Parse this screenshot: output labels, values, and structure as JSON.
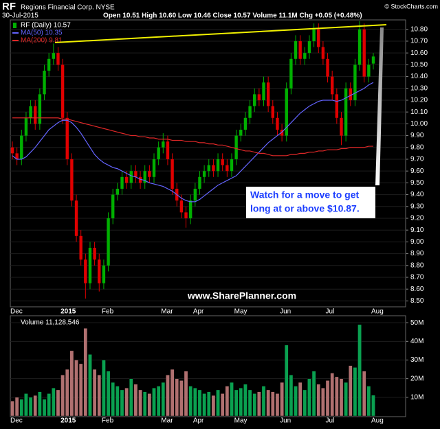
{
  "header": {
    "symbol": "RF",
    "company": "Regions Financial Corp. NYSE",
    "date": "30-Jul-2015",
    "quote": "Open 10.51  High 10.60  Low 10.46  Close 10.57  Volume 11.1M  Chg +0.05 (+0.48%)",
    "copyright": "© StockCharts.com"
  },
  "chart_data": [
    {
      "type": "candlestick",
      "up_color": "#00b000",
      "down_color": "#e00000",
      "grid": true,
      "annotation": [
        "Watch for a move to get",
        "long at or above $10.87."
      ],
      "watermark": "www.SharePlanner.com",
      "categories": [
        "Dec",
        null,
        null,
        null,
        null,
        null,
        null,
        null,
        null,
        null,
        null,
        "2015",
        null,
        null,
        null,
        null,
        null,
        null,
        null,
        null,
        "Feb",
        null,
        null,
        null,
        null,
        null,
        null,
        null,
        null,
        null,
        null,
        null,
        null,
        "Mar",
        null,
        null,
        null,
        null,
        null,
        null,
        "Apr",
        null,
        null,
        null,
        null,
        null,
        null,
        null,
        null,
        "May",
        null,
        null,
        null,
        null,
        null,
        null,
        null,
        null,
        null,
        "Jun",
        null,
        null,
        null,
        null,
        null,
        null,
        null,
        null,
        null,
        "Jul",
        null,
        null,
        null,
        null,
        null,
        null,
        null,
        null,
        null,
        "Aug"
      ],
      "series": [
        {
          "name": "RF (Daily) 10.57",
          "open": [
            9.8,
            9.75,
            9.7,
            9.9,
            10.05,
            10.15,
            10.0,
            10.25,
            10.45,
            10.55,
            10.6,
            10.5,
            10.05,
            9.7,
            9.35,
            9.05,
            8.85,
            8.65,
            8.95,
            8.85,
            8.65,
            8.8,
            9.2,
            9.4,
            9.45,
            9.55,
            9.5,
            9.6,
            9.55,
            9.5,
            9.6,
            9.55,
            9.7,
            9.8,
            9.85,
            9.7,
            9.45,
            9.35,
            9.25,
            9.2,
            9.35,
            9.45,
            9.55,
            9.6,
            9.65,
            9.6,
            9.7,
            9.65,
            9.6,
            9.7,
            9.9,
            9.95,
            10.05,
            10.15,
            10.25,
            10.2,
            10.35,
            10.15,
            10.05,
            9.95,
            9.9,
            10.3,
            10.55,
            10.7,
            10.55,
            10.6,
            10.7,
            10.8,
            10.65,
            10.55,
            10.4,
            10.25,
            10.05,
            9.9,
            10.3,
            10.2,
            10.5,
            10.8,
            10.4,
            10.51
          ],
          "high": [
            9.85,
            9.8,
            9.95,
            10.1,
            10.2,
            10.2,
            10.3,
            10.5,
            10.6,
            10.68,
            10.65,
            10.55,
            10.1,
            9.75,
            9.4,
            9.1,
            8.9,
            9.0,
            9.0,
            8.9,
            8.85,
            9.25,
            9.45,
            9.5,
            9.6,
            9.6,
            9.65,
            9.65,
            9.6,
            9.65,
            9.65,
            9.75,
            9.85,
            9.92,
            9.9,
            9.75,
            9.5,
            9.4,
            9.3,
            9.4,
            9.5,
            9.6,
            9.65,
            9.7,
            9.7,
            9.75,
            9.75,
            9.7,
            9.75,
            9.95,
            10.0,
            10.1,
            10.2,
            10.3,
            10.3,
            10.4,
            10.4,
            10.2,
            10.1,
            10.0,
            10.35,
            10.6,
            10.75,
            10.75,
            10.65,
            10.75,
            10.85,
            10.85,
            10.7,
            10.6,
            10.45,
            10.3,
            10.1,
            10.35,
            10.35,
            10.55,
            10.87,
            10.85,
            10.55,
            10.6
          ],
          "low": [
            9.7,
            9.65,
            9.65,
            9.85,
            10.0,
            9.95,
            9.95,
            10.2,
            10.4,
            10.5,
            10.45,
            10.0,
            9.65,
            9.3,
            9.0,
            8.8,
            8.52,
            8.6,
            8.8,
            8.58,
            8.6,
            8.75,
            9.15,
            9.35,
            9.4,
            9.45,
            9.45,
            9.5,
            9.45,
            9.45,
            9.5,
            9.5,
            9.65,
            9.75,
            9.65,
            9.4,
            9.3,
            9.2,
            9.12,
            9.15,
            9.3,
            9.4,
            9.5,
            9.55,
            9.55,
            9.55,
            9.6,
            9.55,
            9.55,
            9.65,
            9.85,
            9.9,
            10.0,
            10.1,
            10.15,
            10.15,
            10.1,
            10.0,
            9.9,
            9.85,
            9.85,
            10.25,
            10.5,
            10.5,
            10.5,
            10.55,
            10.65,
            10.6,
            10.5,
            10.35,
            10.2,
            10.0,
            9.82,
            9.85,
            10.15,
            10.15,
            10.45,
            10.35,
            10.35,
            10.46
          ],
          "close": [
            9.75,
            9.7,
            9.9,
            10.05,
            10.15,
            10.0,
            10.25,
            10.45,
            10.55,
            10.6,
            10.5,
            10.05,
            9.7,
            9.35,
            9.05,
            8.85,
            8.65,
            8.95,
            8.85,
            8.65,
            8.8,
            9.2,
            9.4,
            9.45,
            9.55,
            9.5,
            9.6,
            9.55,
            9.5,
            9.6,
            9.55,
            9.7,
            9.8,
            9.85,
            9.7,
            9.45,
            9.35,
            9.25,
            9.2,
            9.35,
            9.45,
            9.55,
            9.6,
            9.65,
            9.6,
            9.7,
            9.65,
            9.6,
            9.7,
            9.9,
            9.95,
            10.05,
            10.15,
            10.25,
            10.2,
            10.35,
            10.15,
            10.05,
            9.95,
            9.9,
            10.3,
            10.55,
            10.7,
            10.55,
            10.6,
            10.7,
            10.8,
            10.65,
            10.55,
            10.4,
            10.25,
            10.05,
            9.9,
            10.3,
            10.2,
            10.5,
            10.8,
            10.4,
            10.5,
            10.57
          ]
        },
        {
          "name": "MA(50) 10.35",
          "color": "#6464ff",
          "values": [
            9.73,
            9.7,
            9.7,
            9.72,
            9.76,
            9.8,
            9.85,
            9.9,
            9.95,
            9.98,
            10.01,
            10.03,
            10.03,
            10.01,
            9.97,
            9.92,
            9.86,
            9.8,
            9.74,
            9.7,
            9.67,
            9.65,
            9.63,
            9.62,
            9.6,
            9.58,
            9.56,
            9.55,
            9.53,
            9.52,
            9.5,
            9.49,
            9.48,
            9.47,
            9.45,
            9.43,
            9.4,
            9.37,
            9.35,
            9.34,
            9.34,
            9.36,
            9.39,
            9.42,
            9.45,
            9.48,
            9.5,
            9.52,
            9.54,
            9.56,
            9.6,
            9.64,
            9.68,
            9.72,
            9.76,
            9.8,
            9.84,
            9.87,
            9.9,
            9.93,
            9.97,
            10.01,
            10.05,
            10.09,
            10.12,
            10.15,
            10.17,
            10.19,
            10.2,
            10.2,
            10.2,
            10.19,
            10.2,
            10.22,
            10.24,
            10.26,
            10.28,
            10.3,
            10.33,
            10.35
          ]
        },
        {
          "name": "MA(200) 9.81",
          "color": "#e02828",
          "values": [
            10.05,
            10.05,
            10.05,
            10.05,
            10.05,
            10.05,
            10.05,
            10.05,
            10.05,
            10.05,
            10.05,
            10.04,
            10.04,
            10.03,
            10.02,
            10.01,
            10.0,
            9.99,
            9.98,
            9.97,
            9.96,
            9.95,
            9.94,
            9.93,
            9.92,
            9.91,
            9.9,
            9.9,
            9.89,
            9.89,
            9.88,
            9.88,
            9.87,
            9.87,
            9.87,
            9.86,
            9.86,
            9.86,
            9.85,
            9.85,
            9.85,
            9.84,
            9.84,
            9.83,
            9.83,
            9.82,
            9.82,
            9.81,
            9.8,
            9.79,
            9.78,
            9.77,
            9.77,
            9.76,
            9.75,
            9.75,
            9.74,
            9.73,
            9.73,
            9.73,
            9.73,
            9.74,
            9.74,
            9.75,
            9.75,
            9.76,
            9.76,
            9.77,
            9.77,
            9.78,
            9.78,
            9.78,
            9.79,
            9.79,
            9.8,
            9.8,
            9.8,
            9.8,
            9.81,
            9.81
          ]
        }
      ],
      "ylim": [
        8.45,
        10.88
      ],
      "yticks": [
        {
          "value": 8.5,
          "label": "8.50"
        },
        {
          "value": 8.6,
          "label": "8.60"
        },
        {
          "value": 8.7,
          "label": "8.70"
        },
        {
          "value": 8.8,
          "label": "8.80"
        },
        {
          "value": 8.9,
          "label": "8.90"
        },
        {
          "value": 9.0,
          "label": "9.00"
        },
        {
          "value": 9.1,
          "label": "9.10"
        },
        {
          "value": 9.2,
          "label": "9.20"
        },
        {
          "value": 9.3,
          "label": "9.30"
        },
        {
          "value": 9.4,
          "label": "9.40"
        },
        {
          "value": 9.5,
          "label": "9.50"
        },
        {
          "value": 9.6,
          "label": "9.60"
        },
        {
          "value": 9.7,
          "label": "9.70"
        },
        {
          "value": 9.8,
          "label": "9.80"
        },
        {
          "value": 9.9,
          "label": "9.90"
        },
        {
          "value": 10.0,
          "label": "10.00"
        },
        {
          "value": 10.1,
          "label": "10.10"
        },
        {
          "value": 10.2,
          "label": "10.20"
        },
        {
          "value": 10.3,
          "label": "10.30"
        },
        {
          "value": 10.4,
          "label": "10.40"
        },
        {
          "value": 10.5,
          "label": "10.50"
        },
        {
          "value": 10.6,
          "label": "10.60"
        },
        {
          "value": 10.7,
          "label": "10.70"
        },
        {
          "value": 10.8,
          "label": "10.80"
        }
      ]
    },
    {
      "type": "bar",
      "title": "Volume 11,128,546",
      "grid": true,
      "categories": [
        "Dec",
        null,
        null,
        null,
        null,
        null,
        null,
        null,
        null,
        null,
        null,
        "2015",
        null,
        null,
        null,
        null,
        null,
        null,
        null,
        null,
        "Feb",
        null,
        null,
        null,
        null,
        null,
        null,
        null,
        null,
        null,
        null,
        null,
        null,
        "Mar",
        null,
        null,
        null,
        null,
        null,
        null,
        "Apr",
        null,
        null,
        null,
        null,
        null,
        null,
        null,
        null,
        "May",
        null,
        null,
        null,
        null,
        null,
        null,
        null,
        null,
        null,
        "Jun",
        null,
        null,
        null,
        null,
        null,
        null,
        null,
        null,
        null,
        "Jul",
        null,
        null,
        null,
        null,
        null,
        null,
        null,
        null,
        null,
        "Aug"
      ],
      "values": [
        8000000,
        10000000,
        9000000,
        12000000,
        10000000,
        11000000,
        13000000,
        9000000,
        12000000,
        15000000,
        14000000,
        22000000,
        25000000,
        35000000,
        30000000,
        28000000,
        47000000,
        33000000,
        25000000,
        22000000,
        30000000,
        24000000,
        18000000,
        16000000,
        14000000,
        15000000,
        20000000,
        17000000,
        14000000,
        13000000,
        12000000,
        15000000,
        16000000,
        18000000,
        22000000,
        25000000,
        20000000,
        19000000,
        24000000,
        16000000,
        15000000,
        14000000,
        12000000,
        13000000,
        11000000,
        14000000,
        12000000,
        16000000,
        18000000,
        14000000,
        15000000,
        17000000,
        14000000,
        12000000,
        13000000,
        16000000,
        14000000,
        13000000,
        12000000,
        18000000,
        38000000,
        22000000,
        16000000,
        18000000,
        14000000,
        20000000,
        24000000,
        17000000,
        15000000,
        19000000,
        23000000,
        21000000,
        20000000,
        18000000,
        27000000,
        26000000,
        49000000,
        24000000,
        16000000,
        11128546
      ],
      "ylim": [
        0,
        53000000
      ],
      "yticks": [
        {
          "value": 10000000,
          "label": "10M"
        },
        {
          "value": 20000000,
          "label": "20M"
        },
        {
          "value": 30000000,
          "label": "30M"
        },
        {
          "value": 40000000,
          "label": "40M"
        },
        {
          "value": 50000000,
          "label": "50M"
        }
      ]
    }
  ]
}
